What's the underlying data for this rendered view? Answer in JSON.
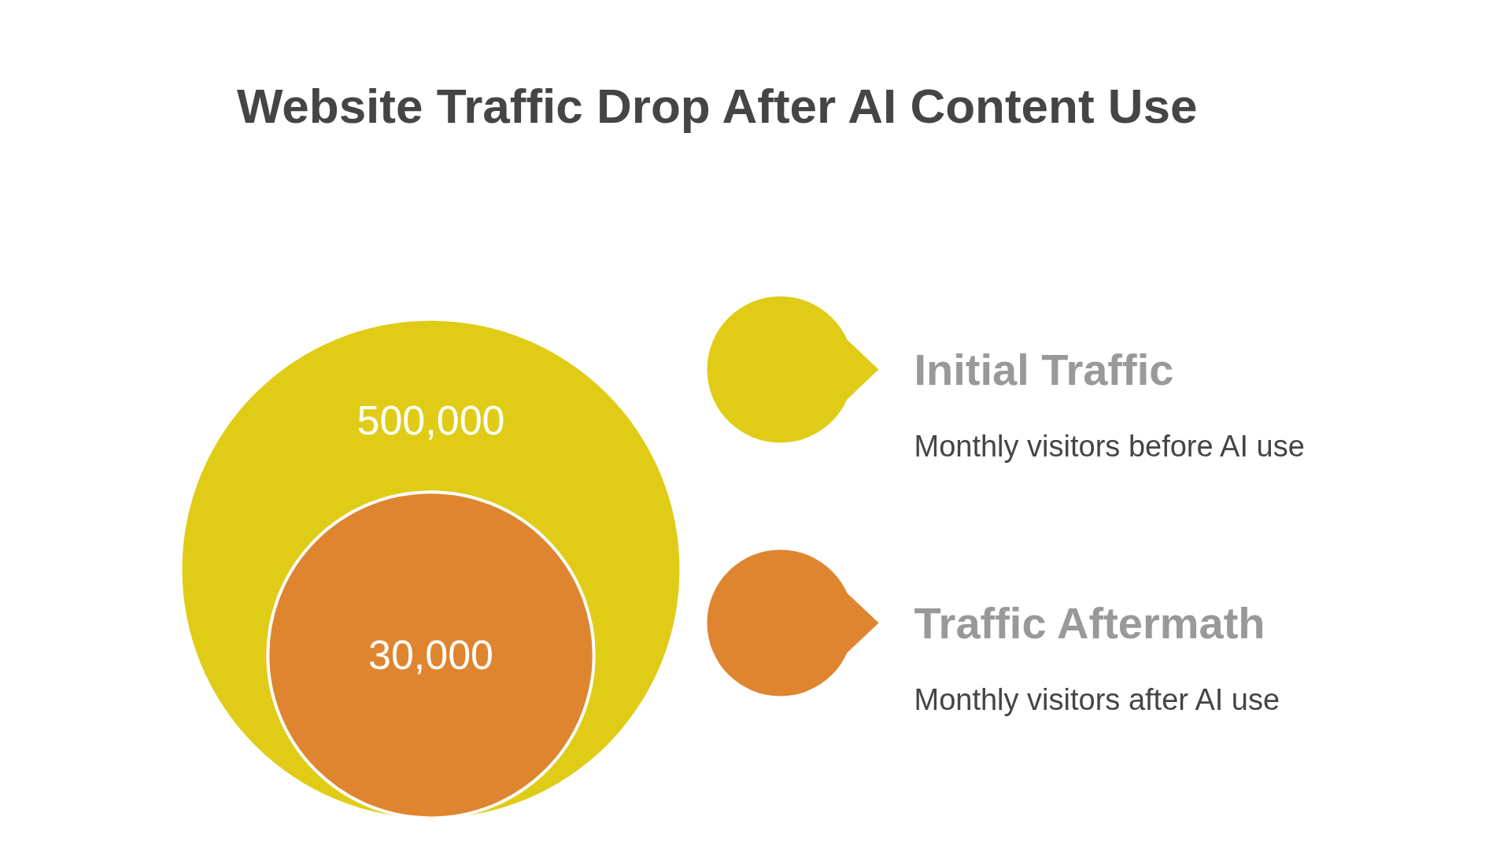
{
  "chart_data": {
    "type": "other",
    "title": "Website Traffic Drop After AI Content Use",
    "categories": [
      "Initial Traffic",
      "Traffic Aftermath"
    ],
    "values": [
      500000,
      30000
    ],
    "value_labels": [
      "500,000",
      "30,000"
    ],
    "colors": [
      "#e0cc17",
      "#df852f"
    ],
    "annotations": [
      "Monthly visitors before AI use",
      "Monthly visitors after AI use"
    ]
  }
}
